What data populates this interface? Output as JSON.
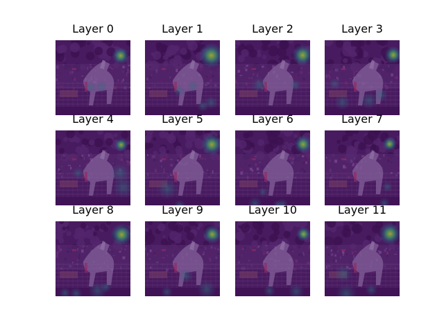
{
  "figure": {
    "background": "#ffffff",
    "colormap": "viridis",
    "base_tint": "#4b1f63",
    "panels": [
      {
        "title": "Layer 0"
      },
      {
        "title": "Layer 1"
      },
      {
        "title": "Layer 2"
      },
      {
        "title": "Layer 3"
      },
      {
        "title": "Layer 4"
      },
      {
        "title": "Layer 5"
      },
      {
        "title": "Layer 6"
      },
      {
        "title": "Layer 7"
      },
      {
        "title": "Layer 8"
      },
      {
        "title": "Layer 9"
      },
      {
        "title": "Layer 10"
      },
      {
        "title": "Layer 11"
      }
    ]
  }
}
